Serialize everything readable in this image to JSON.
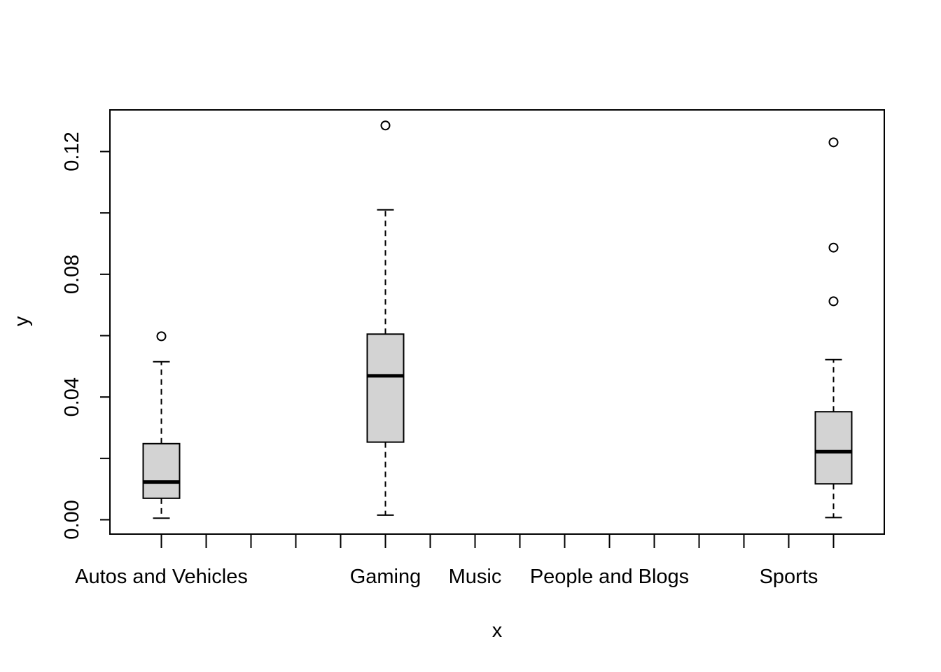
{
  "chart_data": {
    "type": "box",
    "xlabel": "x",
    "ylabel": "y",
    "ylim": [
      -0.005,
      0.133
    ],
    "y_ticks": [
      "0.00",
      "0.04",
      "0.08",
      "0.12"
    ],
    "y_tick_values": [
      0.0,
      0.02,
      0.04,
      0.06,
      0.08,
      0.1,
      0.12
    ],
    "slots": 16,
    "x_tick_labels": [
      {
        "slot": 1,
        "label": "Autos and Vehicles"
      },
      {
        "slot": 6,
        "label": "Gaming"
      },
      {
        "slot": 8,
        "label": "Music"
      },
      {
        "slot": 11,
        "label": "People and Blogs"
      },
      {
        "slot": 15,
        "label": "Sports"
      }
    ],
    "boxes": [
      {
        "slot": 1,
        "whisker_low": 0.0005,
        "q1": 0.007,
        "median": 0.0123,
        "q3": 0.0248,
        "whisker_high": 0.0515,
        "outliers": [
          0.0598
        ]
      },
      {
        "slot": 6,
        "whisker_low": 0.0015,
        "q1": 0.0253,
        "median": 0.0469,
        "q3": 0.0605,
        "whisker_high": 0.101,
        "outliers": [
          0.1285
        ]
      },
      {
        "slot": 16,
        "whisker_low": 0.0007,
        "q1": 0.0117,
        "median": 0.0222,
        "q3": 0.0352,
        "whisker_high": 0.0522,
        "outliers": [
          0.0712,
          0.0887,
          0.123
        ]
      }
    ],
    "colors": {
      "box_fill": "#d3d3d3",
      "stroke": "#000000"
    },
    "grid": false,
    "legend": "none"
  }
}
